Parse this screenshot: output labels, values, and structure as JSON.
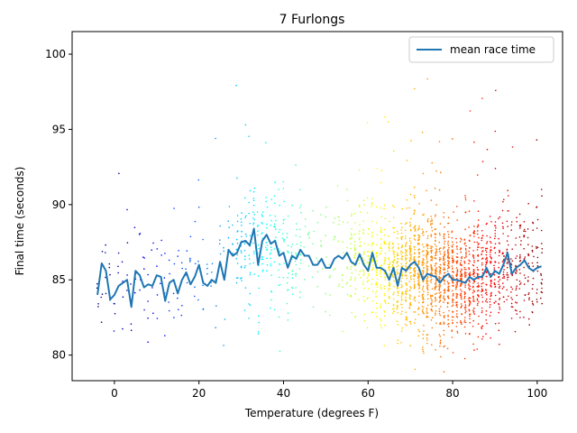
{
  "chart_data": {
    "type": "scatter",
    "title": "7 Furlongs",
    "xlabel": "Temperature (degrees F)",
    "ylabel": "Final time (seconds)",
    "xlim": [
      -10,
      106
    ],
    "ylim": [
      78.3,
      101.5
    ],
    "xticks": [
      0,
      20,
      40,
      60,
      80,
      100
    ],
    "yticks": [
      80,
      85,
      90,
      95,
      100
    ],
    "legend": {
      "placement": "top-right",
      "entries": [
        "mean race time"
      ]
    },
    "grid": false,
    "scatter_colormap": "jet (color by temperature)",
    "line_color": "#1f77b4",
    "series": [
      {
        "name": "mean race time",
        "x": [
          -4,
          -3,
          -2,
          -1,
          0,
          1,
          2,
          3,
          4,
          5,
          6,
          7,
          8,
          9,
          10,
          11,
          12,
          13,
          14,
          15,
          16,
          17,
          18,
          19,
          20,
          21,
          22,
          23,
          24,
          25,
          26,
          27,
          28,
          29,
          30,
          31,
          32,
          33,
          34,
          35,
          36,
          37,
          38,
          39,
          40,
          41,
          42,
          43,
          44,
          45,
          46,
          47,
          48,
          49,
          50,
          51,
          52,
          53,
          54,
          55,
          56,
          57,
          58,
          59,
          60,
          61,
          62,
          63,
          64,
          65,
          66,
          67,
          68,
          69,
          70,
          71,
          72,
          73,
          74,
          75,
          76,
          77,
          78,
          79,
          80,
          81,
          82,
          83,
          84,
          85,
          86,
          87,
          88,
          89,
          90,
          91,
          92,
          93,
          94,
          95,
          96,
          97,
          98,
          99,
          100,
          101
        ],
        "y": [
          84.0,
          86.1,
          85.6,
          83.7,
          84.0,
          84.6,
          84.8,
          85.0,
          83.2,
          85.6,
          85.3,
          84.5,
          84.7,
          84.6,
          85.3,
          85.2,
          83.6,
          84.8,
          85.0,
          84.1,
          85.0,
          85.5,
          84.7,
          85.2,
          86.0,
          84.8,
          84.6,
          85.0,
          84.8,
          86.2,
          85.0,
          87.0,
          86.6,
          86.8,
          87.5,
          87.6,
          87.3,
          88.4,
          86.0,
          87.6,
          88.0,
          87.4,
          87.6,
          86.6,
          86.8,
          85.8,
          86.6,
          86.4,
          87.0,
          86.6,
          86.6,
          86.0,
          86.0,
          86.4,
          85.8,
          85.8,
          86.4,
          86.6,
          86.4,
          86.8,
          86.2,
          86.0,
          86.7,
          86.0,
          85.6,
          86.8,
          85.8,
          85.8,
          85.6,
          85.0,
          85.8,
          84.6,
          85.8,
          85.6,
          86.0,
          86.2,
          85.8,
          85.0,
          85.4,
          85.3,
          85.2,
          84.8,
          85.2,
          85.4,
          85.0,
          85.0,
          84.9,
          84.8,
          85.2,
          85.0,
          85.2,
          85.2,
          85.8,
          85.2,
          85.6,
          85.4,
          86.0,
          86.8,
          85.4,
          85.8,
          86.0,
          86.3,
          85.8,
          85.6,
          85.8,
          85.9
        ]
      }
    ]
  }
}
